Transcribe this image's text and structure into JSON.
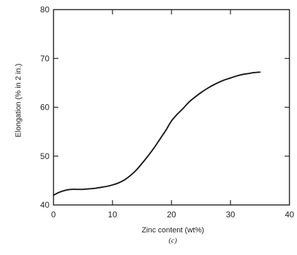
{
  "chart_data": {
    "type": "line",
    "title": "",
    "xlabel": "Zinc content (wt%)",
    "ylabel": "Elongation (% in 2 in.)",
    "panel_label": "(c)",
    "xlim": [
      0,
      40
    ],
    "ylim": [
      40,
      80
    ],
    "x_ticks": [
      0,
      10,
      20,
      30,
      40
    ],
    "x_tick_labels": [
      "0",
      "10",
      "20",
      "30",
      "40"
    ],
    "y_ticks": [
      40,
      50,
      60,
      70,
      80
    ],
    "y_tick_labels": [
      "40",
      "50",
      "60",
      "70",
      "80"
    ],
    "grid": false,
    "line_color": "#1a1a1a",
    "series": [
      {
        "x": [
          0,
          1,
          2,
          3,
          4,
          5,
          6,
          7,
          8,
          9,
          10,
          11,
          12,
          13,
          14,
          15,
          16,
          17,
          18,
          19,
          20,
          21,
          22,
          23,
          24,
          25,
          26,
          27,
          28,
          29,
          30,
          31,
          32,
          33,
          34,
          35
        ],
        "y": [
          42,
          42.6,
          43,
          43.2,
          43.2,
          43.2,
          43.3,
          43.4,
          43.6,
          43.8,
          44.1,
          44.5,
          45.1,
          46,
          47.1,
          48.5,
          50,
          51.6,
          53.4,
          55.2,
          57.2,
          58.6,
          59.8,
          61.1,
          62.1,
          63,
          63.8,
          64.5,
          65.1,
          65.6,
          66,
          66.4,
          66.7,
          66.9,
          67.1,
          67.2
        ]
      }
    ]
  }
}
